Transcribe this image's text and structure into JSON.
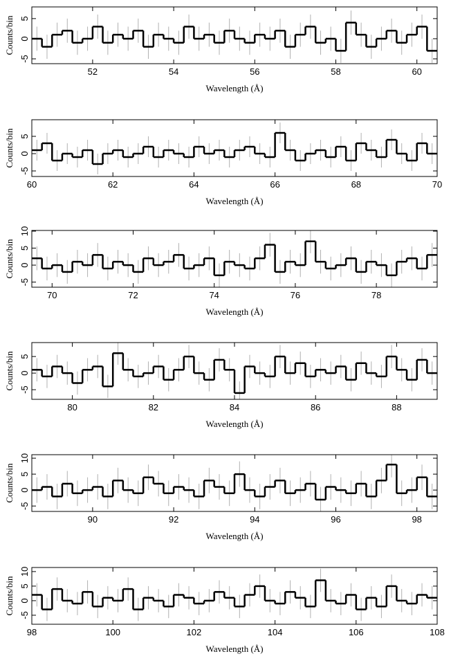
{
  "chart_data": [
    {
      "type": "histogram",
      "xlabel": "Wavelength (Å)",
      "ylabel": "Counts/bin",
      "color": "#000000",
      "err_color": "#b0b0b0",
      "xlim": [
        50.5,
        60.5
      ],
      "ylim": [
        -6.2,
        7.9
      ],
      "xticks": [
        52,
        54,
        56,
        58,
        60
      ],
      "yticks": [
        -5,
        0,
        5
      ],
      "yerr": 3,
      "bins": [
        50.5,
        50.75,
        51,
        51.25,
        51.5,
        51.75,
        52,
        52.25,
        52.5,
        52.75,
        53,
        53.25,
        53.5,
        53.75,
        54,
        54.25,
        54.5,
        54.75,
        55,
        55.25,
        55.5,
        55.75,
        56,
        56.25,
        56.5,
        56.75,
        57,
        57.25,
        57.5,
        57.75,
        58,
        58.25,
        58.5,
        58.75,
        59,
        59.25,
        59.5,
        59.75,
        60,
        60.25,
        60.5
      ],
      "values": [
        0,
        -2,
        1,
        2,
        -1,
        0,
        3,
        -1,
        1,
        0,
        2,
        -2,
        1,
        0,
        -1,
        3,
        0,
        1,
        -1,
        2,
        0,
        -1,
        1,
        0,
        2,
        -2,
        1,
        3,
        -1,
        0,
        -3,
        4,
        1,
        -2,
        0,
        2,
        -1,
        1,
        3,
        -3
      ]
    },
    {
      "type": "histogram",
      "xlabel": "Wavelength (Å)",
      "ylabel": "Counts/bin",
      "color": "#000000",
      "err_color": "#b0b0b0",
      "xlim": [
        60,
        70
      ],
      "ylim": [
        -6.6,
        9.8
      ],
      "xticks": [
        60,
        62,
        64,
        66,
        68,
        70
      ],
      "yticks": [
        -5,
        0,
        5
      ],
      "yerr": 3,
      "bins": [
        60,
        60.25,
        60.5,
        60.75,
        61,
        61.25,
        61.5,
        61.75,
        62,
        62.25,
        62.5,
        62.75,
        63,
        63.25,
        63.5,
        63.75,
        64,
        64.25,
        64.5,
        64.75,
        65,
        65.25,
        65.5,
        65.75,
        66,
        66.25,
        66.5,
        66.75,
        67,
        67.25,
        67.5,
        67.75,
        68,
        68.25,
        68.5,
        68.75,
        69,
        69.25,
        69.5,
        69.75,
        70
      ],
      "values": [
        1,
        3,
        -2,
        0,
        -1,
        1,
        -3,
        0,
        1,
        -1,
        0,
        2,
        -1,
        1,
        0,
        -1,
        2,
        0,
        1,
        -1,
        1,
        2,
        0,
        -1,
        6,
        1,
        -2,
        0,
        1,
        -1,
        2,
        -2,
        3,
        1,
        -1,
        4,
        0,
        -2,
        3,
        0
      ]
    },
    {
      "type": "histogram",
      "xlabel": "Wavelength (Å)",
      "ylabel": "Counts/bin",
      "color": "#000000",
      "err_color": "#b0b0b0",
      "xlim": [
        69.5,
        79.5
      ],
      "ylim": [
        -6.5,
        10.2
      ],
      "xticks": [
        70,
        72,
        74,
        76,
        78
      ],
      "yticks": [
        -5,
        0,
        5,
        10
      ],
      "yerr": 3.5,
      "bins": [
        69.5,
        69.75,
        70,
        70.25,
        70.5,
        70.75,
        71,
        71.25,
        71.5,
        71.75,
        72,
        72.25,
        72.5,
        72.75,
        73,
        73.25,
        73.5,
        73.75,
        74,
        74.25,
        74.5,
        74.75,
        75,
        75.25,
        75.5,
        75.75,
        76,
        76.25,
        76.5,
        76.75,
        77,
        77.25,
        77.5,
        77.75,
        78,
        78.25,
        78.5,
        78.75,
        79,
        79.25,
        79.5
      ],
      "values": [
        2,
        -1,
        0,
        -2,
        1,
        0,
        3,
        -1,
        1,
        0,
        -2,
        2,
        0,
        1,
        3,
        -1,
        0,
        2,
        -3,
        1,
        0,
        -1,
        2,
        6,
        -2,
        1,
        0,
        7,
        1,
        -1,
        0,
        2,
        -2,
        1,
        0,
        -3,
        1,
        2,
        -1,
        3
      ]
    },
    {
      "type": "histogram",
      "xlabel": "Wavelength (Å)",
      "ylabel": "Counts/bin",
      "color": "#000000",
      "err_color": "#b0b0b0",
      "xlim": [
        79,
        89
      ],
      "ylim": [
        -7.9,
        9.2
      ],
      "xticks": [
        80,
        82,
        84,
        86,
        88
      ],
      "yticks": [
        -5,
        0,
        5
      ],
      "yerr": 3.5,
      "bins": [
        79,
        79.25,
        79.5,
        79.75,
        80,
        80.25,
        80.5,
        80.75,
        81,
        81.25,
        81.5,
        81.75,
        82,
        82.25,
        82.5,
        82.75,
        83,
        83.25,
        83.5,
        83.75,
        84,
        84.25,
        84.5,
        84.75,
        85,
        85.25,
        85.5,
        85.75,
        86,
        86.25,
        86.5,
        86.75,
        87,
        87.25,
        87.5,
        87.75,
        88,
        88.25,
        88.5,
        88.75,
        89
      ],
      "values": [
        1,
        -1,
        2,
        0,
        -3,
        1,
        2,
        -4,
        6,
        1,
        -1,
        0,
        2,
        -2,
        1,
        5,
        0,
        -2,
        4,
        1,
        -6,
        2,
        0,
        -1,
        5,
        0,
        3,
        -1,
        1,
        0,
        2,
        -2,
        3,
        0,
        -1,
        5,
        1,
        -2,
        4,
        0
      ]
    },
    {
      "type": "histogram",
      "xlabel": "Wavelength (Å)",
      "ylabel": "Counts/bin",
      "color": "#000000",
      "err_color": "#b0b0b0",
      "xlim": [
        88.5,
        98.5
      ],
      "ylim": [
        -6.7,
        11.1
      ],
      "xticks": [
        90,
        92,
        94,
        96,
        98
      ],
      "yticks": [
        -5,
        0,
        5,
        10
      ],
      "yerr": 4,
      "bins": [
        88.5,
        88.75,
        89,
        89.25,
        89.5,
        89.75,
        90,
        90.25,
        90.5,
        90.75,
        91,
        91.25,
        91.5,
        91.75,
        92,
        92.25,
        92.5,
        92.75,
        93,
        93.25,
        93.5,
        93.75,
        94,
        94.25,
        94.5,
        94.75,
        95,
        95.25,
        95.5,
        95.75,
        96,
        96.25,
        96.5,
        96.75,
        97,
        97.25,
        97.5,
        97.75,
        98,
        98.25,
        98.5
      ],
      "values": [
        0,
        1,
        -2,
        2,
        -1,
        0,
        1,
        -2,
        3,
        0,
        -1,
        4,
        2,
        -1,
        1,
        0,
        -2,
        3,
        1,
        -1,
        5,
        0,
        -2,
        1,
        3,
        -1,
        0,
        2,
        -3,
        1,
        0,
        -1,
        2,
        -2,
        3,
        8,
        -1,
        0,
        4,
        -2
      ]
    },
    {
      "type": "histogram",
      "xlabel": "Wavelength (Å)",
      "ylabel": "Counts/bin",
      "color": "#000000",
      "err_color": "#b0b0b0",
      "xlim": [
        98,
        108
      ],
      "ylim": [
        -8.1,
        11.4
      ],
      "xticks": [
        98,
        100,
        102,
        104,
        106,
        108
      ],
      "yticks": [
        -5,
        0,
        5,
        10
      ],
      "yerr": 4,
      "bins": [
        98,
        98.25,
        98.5,
        98.75,
        99,
        99.25,
        99.5,
        99.75,
        100,
        100.25,
        100.5,
        100.75,
        101,
        101.25,
        101.5,
        101.75,
        102,
        102.25,
        102.5,
        102.75,
        103,
        103.25,
        103.5,
        103.75,
        104,
        104.25,
        104.5,
        104.75,
        105,
        105.25,
        105.5,
        105.75,
        106,
        106.25,
        106.5,
        106.75,
        107,
        107.25,
        107.5,
        107.75,
        108
      ],
      "values": [
        2,
        -3,
        4,
        0,
        -1,
        3,
        -2,
        1,
        0,
        4,
        -3,
        1,
        0,
        -2,
        2,
        1,
        -1,
        0,
        3,
        1,
        -2,
        2,
        5,
        0,
        -1,
        3,
        1,
        -2,
        7,
        0,
        -1,
        2,
        -3,
        1,
        -2,
        5,
        0,
        -1,
        2,
        1
      ]
    }
  ]
}
